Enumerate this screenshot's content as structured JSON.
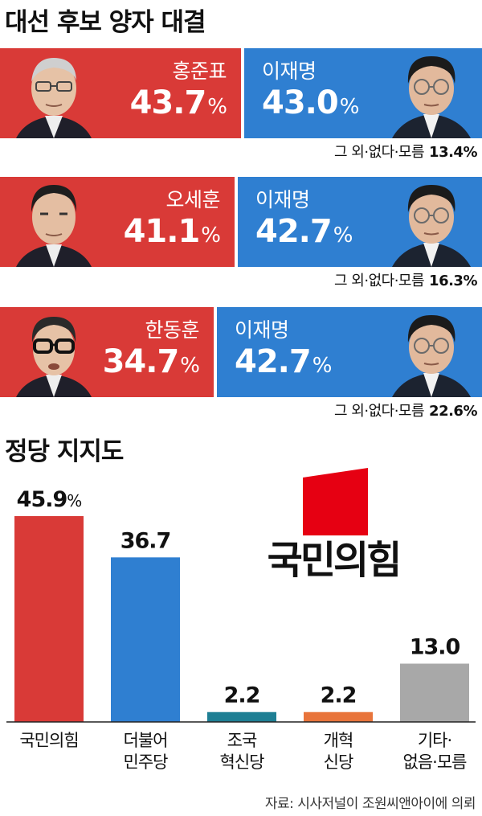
{
  "matchups_title": "대선 후보 양자 대결",
  "matchups": [
    {
      "left": {
        "name": "홍준표",
        "pct": "43.7",
        "unit": "%"
      },
      "right": {
        "name": "이재명",
        "pct": "43.0",
        "unit": "%"
      },
      "others_label": "그 외·없다·모름",
      "others_value": "13.4%"
    },
    {
      "left": {
        "name": "오세훈",
        "pct": "41.1",
        "unit": "%"
      },
      "right": {
        "name": "이재명",
        "pct": "42.7",
        "unit": "%"
      },
      "others_label": "그 외·없다·모름",
      "others_value": "16.3%"
    },
    {
      "left": {
        "name": "한동훈",
        "pct": "34.7",
        "unit": "%"
      },
      "right": {
        "name": "이재명",
        "pct": "42.7",
        "unit": "%"
      },
      "others_label": "그 외·없다·모름",
      "others_value": "22.6%"
    }
  ],
  "source": "자료: 시사저널이 조원씨앤아이에 의뢰",
  "colors": {
    "ppp_red": "#d93a37",
    "dp_blue": "#2f7fd1",
    "rebuild_teal": "#1e7f94",
    "reform_orange": "#e8743b",
    "other_gray": "#a8a8a8"
  },
  "chart_data": {
    "type": "bar",
    "title": "정당 지지도",
    "logo_text": "국민의힘",
    "categories": [
      [
        "국민의힘"
      ],
      [
        "더불어",
        "민주당"
      ],
      [
        "조국",
        "혁신당"
      ],
      [
        "개혁",
        "신당"
      ],
      [
        "기타·",
        "없음·모름"
      ]
    ],
    "values": [
      45.9,
      36.7,
      2.2,
      2.2,
      13.0
    ],
    "value_labels": [
      "45.9",
      "36.7",
      "2.2",
      "2.2",
      "13.0"
    ],
    "first_label_unit": "%",
    "colors": [
      "#d93a37",
      "#2f7fd1",
      "#1e7f94",
      "#e8743b",
      "#a8a8a8"
    ],
    "ylim": [
      0,
      45.9
    ],
    "grid": false
  }
}
